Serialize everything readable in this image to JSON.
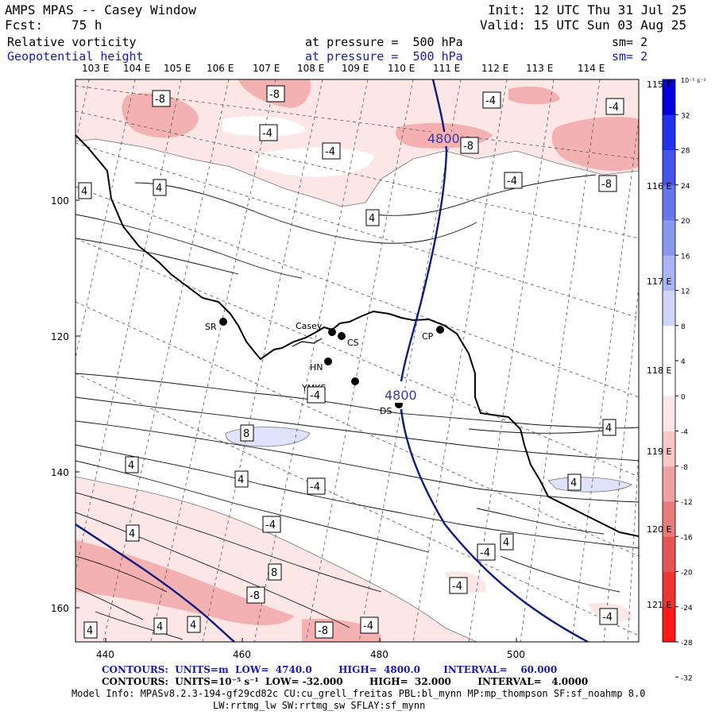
{
  "header": {
    "title": "AMPS MPAS -- Casey Window",
    "init": "Init: 12 UTC Thu 31 Jul 25",
    "fcst_label": "Fcst:",
    "fcst_value": "75 h",
    "valid": "Valid: 15 UTC Sun 03 Aug 25",
    "field1_name": "Relative vorticity",
    "field1_level": "at pressure =  500 hPa",
    "field1_sm": "sm= 2",
    "field2_name": "Geopotential height",
    "field2_level": "at pressure =  500 hPa",
    "field2_sm": "sm= 2"
  },
  "map": {
    "top_lon_labels": [
      "103 E",
      "104 E",
      "105 E",
      "106 E",
      "107 E",
      "108 E",
      "109 E",
      "110 E",
      "111 E",
      "112 E",
      "113 E",
      "114 E"
    ],
    "right_lon_labels": [
      "115 E",
      "116 E",
      "117 E",
      "118 E",
      "119 E",
      "120 E",
      "121 E"
    ],
    "x_ticks": [
      "440",
      "460",
      "480",
      "500"
    ],
    "y_ticks": [
      "100",
      "120",
      "140",
      "160"
    ],
    "stations": [
      {
        "name": "SR"
      },
      {
        "name": "Casey"
      },
      {
        "name": "CS"
      },
      {
        "name": "HN"
      },
      {
        "name": "YMKS"
      },
      {
        "name": "DS"
      },
      {
        "name": "CP"
      }
    ],
    "height_contour_labels": [
      "4800",
      "4800"
    ],
    "vort_labels": [
      "-8",
      "-8",
      "-4",
      "-4",
      "-8",
      "-4",
      "-4",
      "-8",
      "-4",
      "4",
      "4",
      "4",
      "-4",
      "8",
      "4",
      "4",
      "4",
      "-4",
      "4",
      "4",
      "-4",
      "4",
      "8",
      "-4",
      "-4",
      "-8",
      "-4",
      "-4",
      "-8",
      "4",
      "4",
      "4"
    ]
  },
  "colorbar": {
    "unit": "10⁻⁵ s⁻¹",
    "labels": [
      "32",
      "28",
      "24",
      "20",
      "16",
      "12",
      "8",
      "4",
      "0",
      "-4",
      "-8",
      "-12",
      "-16",
      "-20",
      "-24",
      "-28",
      "-32"
    ]
  },
  "footer": {
    "contours1": "CONTOURS:  UNITS=m  LOW=  4740.0        HIGH=  4800.0       INTERVAL=    60.000",
    "contours2": "CONTOURS:  UNITS=10⁻⁵ s⁻¹  LOW= -32.000        HIGH=  32.000        INTERVAL=   4.0000",
    "model_info": "Model Info: MPASv8.2.3-194-gf29cd82c CU:cu_grell_freitas PBL:bl_mynn MP:mp_thompson SF:sf_noahmp 8.0",
    "model_info2": "LW:rrtmg_lw SW:rrtmg_sw SFLAY:sf_mynn"
  },
  "colors": {
    "height_contour": "#0d1a80",
    "colorbar_colors": [
      "#0000dd",
      "#2233ee",
      "#4455ee",
      "#6677ee",
      "#8899ee",
      "#aab5f5",
      "#d0d6fa",
      "#ffffff",
      "#ffffff",
      "#fde6e6",
      "#f8c8c8",
      "#f0a0a0",
      "#ea7b7b",
      "#e65555",
      "#ee3333",
      "#ff1a1a"
    ]
  }
}
